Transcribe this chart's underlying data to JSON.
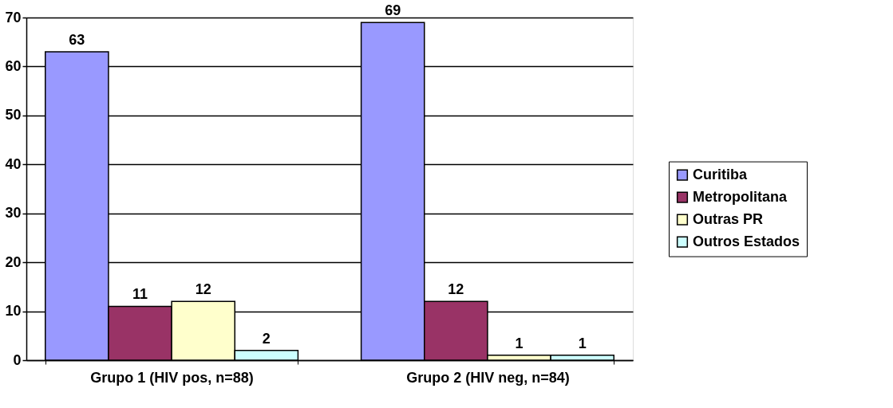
{
  "chart_data": {
    "type": "bar",
    "categories": [
      "Grupo 1 (HIV pos, n=88)",
      "Grupo 2 (HIV neg, n=84)"
    ],
    "series": [
      {
        "name": "Curitiba",
        "color": "#9999ff",
        "values": [
          63,
          69
        ]
      },
      {
        "name": "Metropolitana",
        "color": "#993366",
        "values": [
          11,
          12
        ]
      },
      {
        "name": "Outras PR",
        "color": "#ffffcc",
        "values": [
          12,
          1
        ]
      },
      {
        "name": "Outros Estados",
        "color": "#ccffff",
        "values": [
          2,
          1
        ]
      }
    ],
    "ylim": [
      0,
      70
    ],
    "yticks": [
      0,
      10,
      20,
      30,
      40,
      50,
      60,
      70
    ],
    "grid": "y",
    "legend": "right",
    "data_labels": true
  }
}
